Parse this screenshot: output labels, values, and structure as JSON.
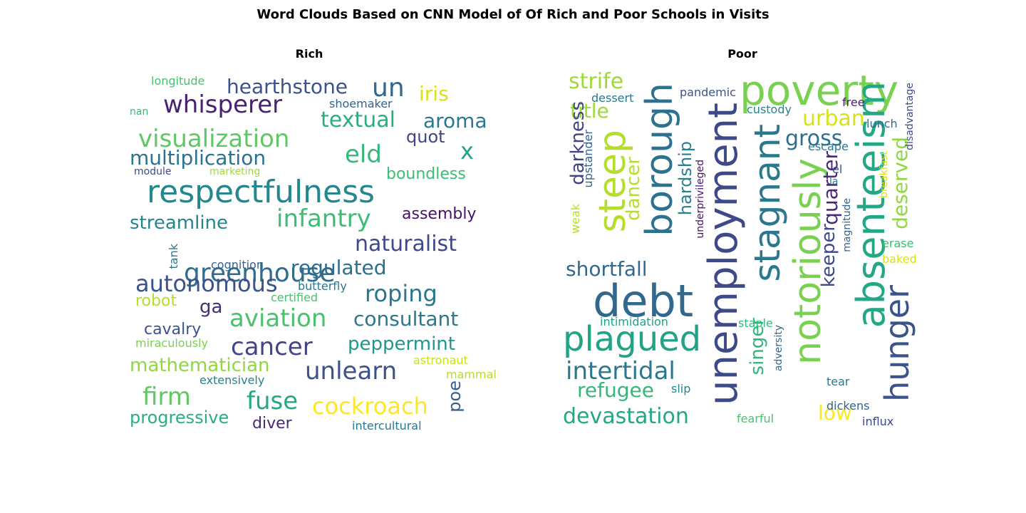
{
  "title": "Word Clouds Based on CNN Model of Of Rich and Poor Schools in Visits",
  "chart_data": [
    {
      "type": "wordcloud",
      "title": "Rich",
      "words": [
        {
          "text": "respectfulness",
          "color": "#23888e"
        },
        {
          "text": "greenhouse",
          "color": "#2f6c8e"
        },
        {
          "text": "visualization",
          "color": "#5ec962"
        },
        {
          "text": "whisperer",
          "color": "#482173"
        },
        {
          "text": "hearthstone",
          "color": "#3b528b"
        },
        {
          "text": "un",
          "color": "#31688e"
        },
        {
          "text": "iris",
          "color": "#d8e219"
        },
        {
          "text": "x",
          "color": "#20a386"
        },
        {
          "text": "eld",
          "color": "#35b779"
        },
        {
          "text": "multiplication",
          "color": "#2c728e"
        },
        {
          "text": "textual",
          "color": "#29af7f"
        },
        {
          "text": "aroma",
          "color": "#2a788e"
        },
        {
          "text": "quot",
          "color": "#414487"
        },
        {
          "text": "boundless",
          "color": "#3dbc74"
        },
        {
          "text": "infantry",
          "color": "#3dbc74"
        },
        {
          "text": "streamline",
          "color": "#25858e"
        },
        {
          "text": "assembly",
          "color": "#471365"
        },
        {
          "text": "naturalist",
          "color": "#3e4989"
        },
        {
          "text": "regulated",
          "color": "#2e6e8e"
        },
        {
          "text": "autonomous",
          "color": "#3b528b"
        },
        {
          "text": "roping",
          "color": "#2a768e"
        },
        {
          "text": "aviation",
          "color": "#4ac16d"
        },
        {
          "text": "consultant",
          "color": "#2a788e"
        },
        {
          "text": "cancer",
          "color": "#414487"
        },
        {
          "text": "peppermint",
          "color": "#1f988b"
        },
        {
          "text": "mathematician",
          "color": "#90d743"
        },
        {
          "text": "unlearn",
          "color": "#3b528b"
        },
        {
          "text": "firm",
          "color": "#5ec962"
        },
        {
          "text": "fuse",
          "color": "#22a884"
        },
        {
          "text": "cockroach",
          "color": "#fde725"
        },
        {
          "text": "poe",
          "color": "#355f8d"
        },
        {
          "text": "progressive",
          "color": "#29af7f"
        },
        {
          "text": "diver",
          "color": "#482878"
        },
        {
          "text": "intercultural",
          "color": "#2a788e"
        },
        {
          "text": "robot",
          "color": "#b5de2b"
        },
        {
          "text": "ga",
          "color": "#472d7b"
        },
        {
          "text": "cavalry",
          "color": "#3b528b"
        },
        {
          "text": "butterfly",
          "color": "#2a788e"
        },
        {
          "text": "certified",
          "color": "#4ac16d"
        },
        {
          "text": "longitude",
          "color": "#4ac16d"
        },
        {
          "text": "shoemaker",
          "color": "#33638d"
        },
        {
          "text": "nan",
          "color": "#35b779"
        },
        {
          "text": "module",
          "color": "#3e4989"
        },
        {
          "text": "marketing",
          "color": "#a0da39"
        },
        {
          "text": "tank",
          "color": "#2a788e"
        },
        {
          "text": "cognition",
          "color": "#33638d"
        },
        {
          "text": "miraculously",
          "color": "#7ad151"
        },
        {
          "text": "astronaut",
          "color": "#c8e020"
        },
        {
          "text": "mammal",
          "color": "#b5de2b"
        },
        {
          "text": "extensively",
          "color": "#26828e"
        }
      ]
    },
    {
      "type": "wordcloud",
      "title": "Poor",
      "words": [
        {
          "text": "unemployment",
          "color": "#3e4989"
        },
        {
          "text": "debt",
          "color": "#31688e"
        },
        {
          "text": "poverty",
          "color": "#7ad151"
        },
        {
          "text": "absenteeism",
          "color": "#22a884"
        },
        {
          "text": "notoriously",
          "color": "#7ad151"
        },
        {
          "text": "stagnant",
          "color": "#2a788e"
        },
        {
          "text": "borough",
          "color": "#2c728e"
        },
        {
          "text": "steep",
          "color": "#b5de2b"
        },
        {
          "text": "hunger",
          "color": "#3b528b"
        },
        {
          "text": "plagued",
          "color": "#20a386"
        },
        {
          "text": "intertidal",
          "color": "#2a788e"
        },
        {
          "text": "devastation",
          "color": "#22a884"
        },
        {
          "text": "refugee",
          "color": "#35b779"
        },
        {
          "text": "shortfall",
          "color": "#31688e"
        },
        {
          "text": "strife",
          "color": "#a0da39"
        },
        {
          "text": "title",
          "color": "#a0da39"
        },
        {
          "text": "darkness",
          "color": "#414487"
        },
        {
          "text": "dancer",
          "color": "#b5de2b"
        },
        {
          "text": "hardship",
          "color": "#27808e"
        },
        {
          "text": "urban",
          "color": "#d8e219"
        },
        {
          "text": "gross",
          "color": "#2e6e8e"
        },
        {
          "text": "quarter",
          "color": "#482878"
        },
        {
          "text": "keeper",
          "color": "#3e4989"
        },
        {
          "text": "deserved",
          "color": "#90d743"
        },
        {
          "text": "singer",
          "color": "#2fb47c"
        },
        {
          "text": "low",
          "color": "#fde725"
        },
        {
          "text": "dessert",
          "color": "#2a788e"
        },
        {
          "text": "pandemic",
          "color": "#3b528b"
        },
        {
          "text": "custody",
          "color": "#25858e"
        },
        {
          "text": "upstander",
          "color": "#33638d"
        },
        {
          "text": "underprivileged",
          "color": "#471365"
        },
        {
          "text": "weak",
          "color": "#b5de2b"
        },
        {
          "text": "free",
          "color": "#481f70"
        },
        {
          "text": "lunch",
          "color": "#31688e"
        },
        {
          "text": "escape",
          "color": "#2a788e"
        },
        {
          "text": "disadvantage",
          "color": "#3e4989"
        },
        {
          "text": "breakfast",
          "color": "#d8e219"
        },
        {
          "text": "el",
          "color": "#3b528b"
        },
        {
          "text": "la",
          "color": "#2a788e"
        },
        {
          "text": "magnitude",
          "color": "#33638d"
        },
        {
          "text": "erase",
          "color": "#3dbc74"
        },
        {
          "text": "baked",
          "color": "#d8e219"
        },
        {
          "text": "intimidation",
          "color": "#20a386"
        },
        {
          "text": "staple",
          "color": "#35b779"
        },
        {
          "text": "adversity",
          "color": "#31688e"
        },
        {
          "text": "slip",
          "color": "#25858e"
        },
        {
          "text": "tear",
          "color": "#2a768e"
        },
        {
          "text": "dickens",
          "color": "#33638d"
        },
        {
          "text": "fearful",
          "color": "#4ac16d"
        },
        {
          "text": "influx",
          "color": "#3e4989"
        }
      ]
    }
  ]
}
